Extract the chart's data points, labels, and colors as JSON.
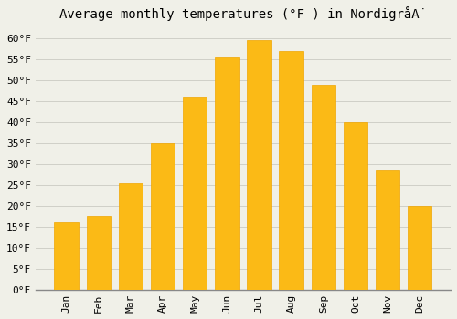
{
  "title": "Average monthly temperatures (°F ) in NordigråȦ",
  "title_display": "Average monthly temperatures (°F ) in Nordigrå",
  "months": [
    "Jan",
    "Feb",
    "Mar",
    "Apr",
    "May",
    "Jun",
    "Jul",
    "Aug",
    "Sep",
    "Oct",
    "Nov",
    "Dec"
  ],
  "values": [
    16,
    17.5,
    25.5,
    35,
    46,
    55.5,
    59.5,
    57,
    49,
    40,
    28.5,
    20
  ],
  "bar_color": "#FBBA16",
  "bar_edge_color": "#F0A500",
  "ylim": [
    0,
    63
  ],
  "yticks": [
    0,
    5,
    10,
    15,
    20,
    25,
    30,
    35,
    40,
    45,
    50,
    55,
    60
  ],
  "ytick_labels": [
    "0°F",
    "5°F",
    "10°F",
    "15°F",
    "20°F",
    "25°F",
    "30°F",
    "35°F",
    "40°F",
    "45°F",
    "50°F",
    "55°F",
    "60°F"
  ],
  "bg_color": "#F0F0E8",
  "grid_color": "#D0D0C8",
  "font_family": "monospace",
  "title_fontsize": 10,
  "tick_fontsize": 8,
  "bar_width": 0.75
}
